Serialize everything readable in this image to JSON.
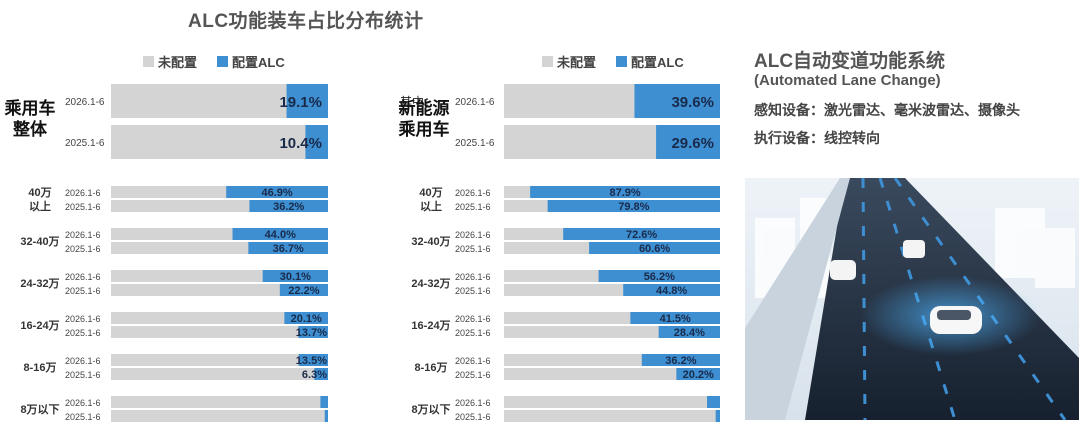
{
  "title": "ALC功能装车占比分布统计",
  "legend": {
    "unconfigured": "未配置",
    "configured": "配置ALC"
  },
  "colors": {
    "unconfigured": "#d4d4d4",
    "configured": "#3d8fd1",
    "label_dark": "#1a2a4a",
    "text": "#333333"
  },
  "side": {
    "title": "ALC自动变道功能系统",
    "subtitle": "(Automated Lane Change)",
    "sensing": "感知设备：激光雷达、毫米波雷达、摄像头",
    "actuation": "执行设备：线控转向",
    "image": "road-scene-illustration"
  },
  "chart_data": [
    {
      "type": "bar",
      "orientation": "horizontal",
      "stacked": true,
      "xlim": [
        0,
        100
      ],
      "group_label": "乘用车整体",
      "overall": [
        {
          "period": "2026.1-6",
          "configured": 19.1,
          "label": "19.1%"
        },
        {
          "period": "2025.1-6",
          "configured": 10.4,
          "label": "10.4%"
        }
      ],
      "segments": [
        {
          "name": "40万以上",
          "rows": [
            {
              "period": "2026.1-6",
              "configured": 46.9,
              "label": "46.9%"
            },
            {
              "period": "2025.1-6",
              "configured": 36.2,
              "label": "36.2%"
            }
          ]
        },
        {
          "name": "32-40万",
          "rows": [
            {
              "period": "2026.1-6",
              "configured": 44.0,
              "label": "44.0%"
            },
            {
              "period": "2025.1-6",
              "configured": 36.7,
              "label": "36.7%"
            }
          ]
        },
        {
          "name": "24-32万",
          "rows": [
            {
              "period": "2026.1-6",
              "configured": 30.1,
              "label": "30.1%"
            },
            {
              "period": "2025.1-6",
              "configured": 22.2,
              "label": "22.2%"
            }
          ]
        },
        {
          "name": "16-24万",
          "rows": [
            {
              "period": "2026.1-6",
              "configured": 20.1,
              "label": "20.1%"
            },
            {
              "period": "2025.1-6",
              "configured": 13.7,
              "label": "13.7%"
            }
          ]
        },
        {
          "name": "8-16万",
          "rows": [
            {
              "period": "2026.1-6",
              "configured": 13.5,
              "label": "13.5%"
            },
            {
              "period": "2025.1-6",
              "configured": 6.3,
              "label": "6.3%"
            }
          ]
        },
        {
          "name": "8万以下",
          "rows": [
            {
              "period": "2026.1-6",
              "configured": 3.5,
              "label": ""
            },
            {
              "period": "2025.1-6",
              "configured": 1.5,
              "label": ""
            }
          ]
        }
      ]
    },
    {
      "type": "bar",
      "orientation": "horizontal",
      "stacked": true,
      "xlim": [
        0,
        100
      ],
      "group_prefix": "其中：",
      "group_label": "新能源乘用车",
      "overall": [
        {
          "period": "2026.1-6",
          "configured": 39.6,
          "label": "39.6%"
        },
        {
          "period": "2025.1-6",
          "configured": 29.6,
          "label": "29.6%"
        }
      ],
      "segments": [
        {
          "name": "40万以上",
          "rows": [
            {
              "period": "2026.1-6",
              "configured": 87.9,
              "label": "87.9%"
            },
            {
              "period": "2025.1-6",
              "configured": 79.8,
              "label": "79.8%"
            }
          ]
        },
        {
          "name": "32-40万",
          "rows": [
            {
              "period": "2026.1-6",
              "configured": 72.6,
              "label": "72.6%"
            },
            {
              "period": "2025.1-6",
              "configured": 60.6,
              "label": "60.6%"
            }
          ]
        },
        {
          "name": "24-32万",
          "rows": [
            {
              "period": "2026.1-6",
              "configured": 56.2,
              "label": "56.2%"
            },
            {
              "period": "2025.1-6",
              "configured": 44.8,
              "label": "44.8%"
            }
          ]
        },
        {
          "name": "16-24万",
          "rows": [
            {
              "period": "2026.1-6",
              "configured": 41.5,
              "label": "41.5%"
            },
            {
              "period": "2025.1-6",
              "configured": 28.4,
              "label": "28.4%"
            }
          ]
        },
        {
          "name": "8-16万",
          "rows": [
            {
              "period": "2026.1-6",
              "configured": 36.2,
              "label": "36.2%"
            },
            {
              "period": "2025.1-6",
              "configured": 20.2,
              "label": "20.2%"
            }
          ]
        },
        {
          "name": "8万以下",
          "rows": [
            {
              "period": "2026.1-6",
              "configured": 6.0,
              "label": ""
            },
            {
              "period": "2025.1-6",
              "configured": 2.0,
              "label": ""
            }
          ]
        }
      ]
    }
  ]
}
